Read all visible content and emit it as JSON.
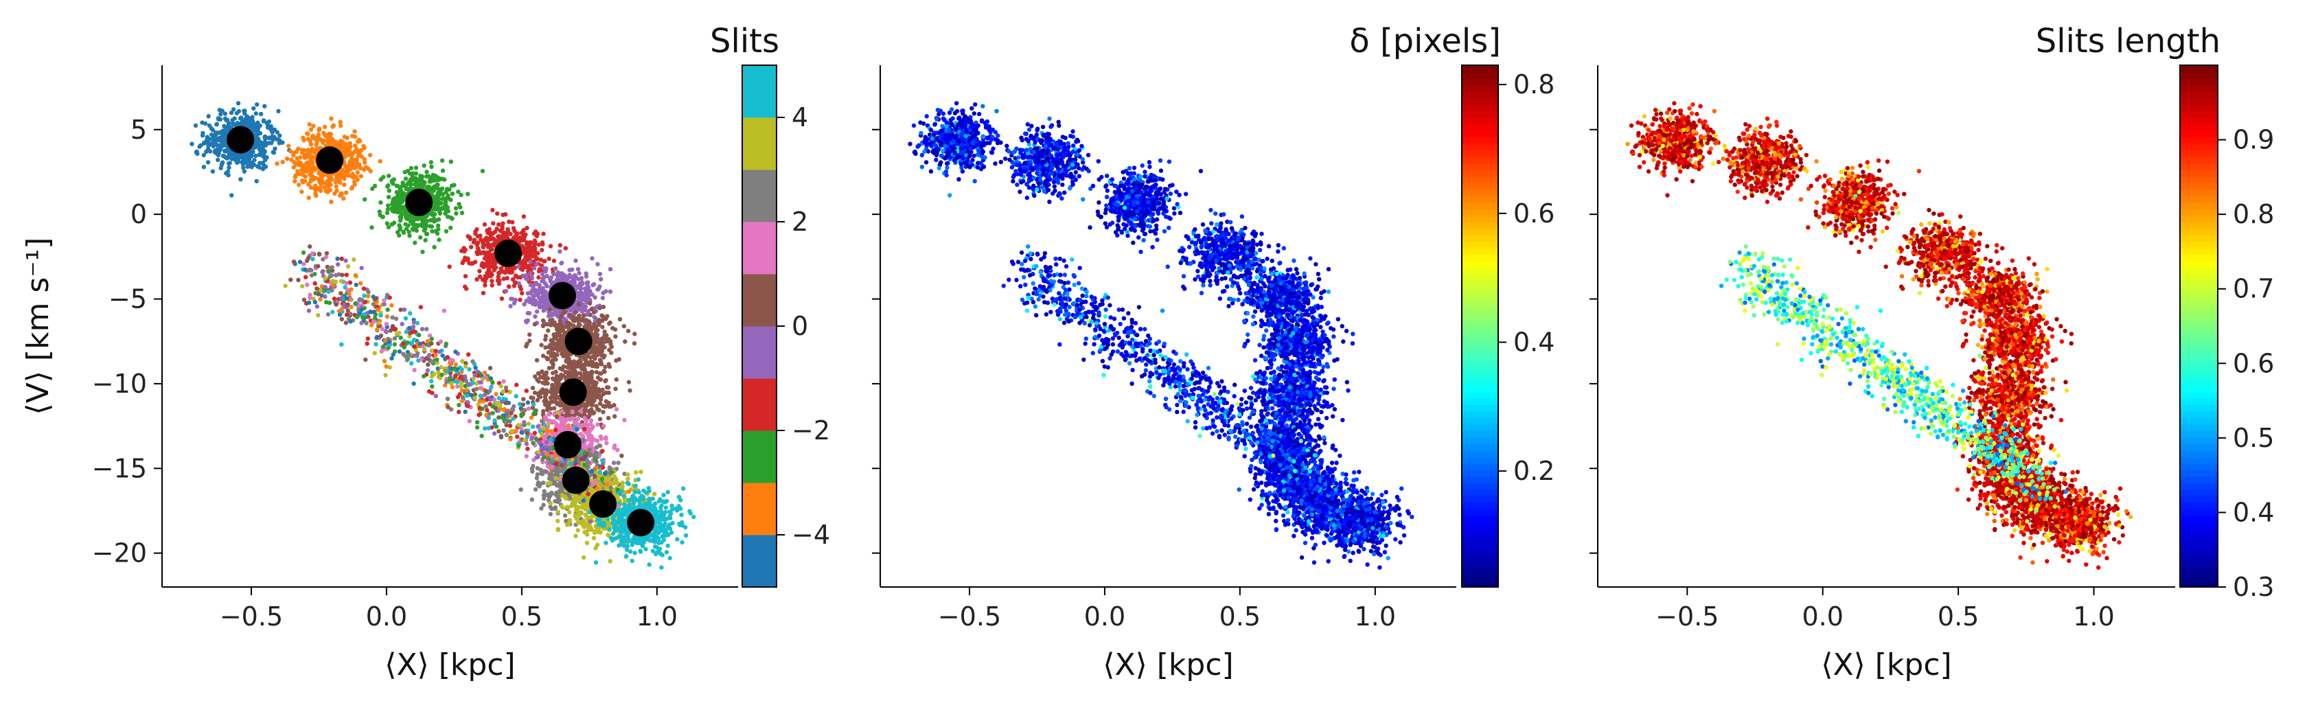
{
  "chart_data": [
    {
      "type": "scatter",
      "panel": "left",
      "xlabel": "⟨X⟩ [kpc]",
      "ylabel": "⟨V⟩ [km s⁻¹]",
      "xlim": [
        -0.83,
        1.3
      ],
      "ylim": [
        -22,
        8.8
      ],
      "xticks": [
        -0.5,
        0.0,
        0.5,
        1.0
      ],
      "xtick_labels": [
        "−0.5",
        "0.0",
        "0.5",
        "1.0"
      ],
      "yticks": [
        5,
        0,
        -5,
        -10,
        -15,
        -20
      ],
      "ytick_labels": [
        "5",
        "0",
        "−5",
        "−10",
        "−15",
        "−20"
      ],
      "colorbar": {
        "title": "Slits",
        "range": [
          -5,
          5
        ],
        "ticks": [
          4,
          2,
          0,
          -2,
          -4
        ],
        "tick_labels": [
          "4",
          "2",
          "0",
          "−2",
          "−4"
        ],
        "colors": [
          "#1f77b4",
          "#ff7f0e",
          "#2ca02c",
          "#d62728",
          "#9467bd",
          "#8c564b",
          "#e377c2",
          "#7f7f7f",
          "#bcbd22",
          "#17becf"
        ]
      },
      "slit_centers": [
        {
          "slit": -5,
          "x": -0.54,
          "y": 4.4
        },
        {
          "slit": -4,
          "x": -0.21,
          "y": 3.2
        },
        {
          "slit": -3,
          "x": 0.12,
          "y": 0.7
        },
        {
          "slit": -2,
          "x": 0.45,
          "y": -2.3
        },
        {
          "slit": -1,
          "x": 0.65,
          "y": -4.8
        },
        {
          "slit": 0,
          "x": 0.71,
          "y": -7.5
        },
        {
          "slit": 1,
          "x": 0.69,
          "y": -10.5
        },
        {
          "slit": 2,
          "x": 0.67,
          "y": -13.6
        },
        {
          "slit": 3,
          "x": 0.7,
          "y": -15.7
        },
        {
          "slit": 4,
          "x": 0.8,
          "y": -17.1
        },
        {
          "slit": 5,
          "x": 0.94,
          "y": -18.2
        }
      ]
    },
    {
      "type": "scatter",
      "panel": "middle",
      "xlabel": "⟨X⟩ [kpc]",
      "xlim": [
        -0.83,
        1.3
      ],
      "ylim": [
        -22,
        8.8
      ],
      "xticks": [
        -0.5,
        0.0,
        0.5,
        1.0
      ],
      "xtick_labels": [
        "−0.5",
        "0.0",
        "0.5",
        "1.0"
      ],
      "colorbar": {
        "title": "δ [pixels]",
        "range": [
          0.02,
          0.83
        ],
        "ticks": [
          0.8,
          0.6,
          0.4,
          0.2
        ],
        "tick_labels": [
          "0.8",
          "0.6",
          "0.4",
          "0.2"
        ],
        "colormap": "jet"
      }
    },
    {
      "type": "scatter",
      "panel": "right",
      "xlabel": "⟨X⟩ [kpc]",
      "xlim": [
        -0.83,
        1.3
      ],
      "ylim": [
        -22,
        8.8
      ],
      "xticks": [
        -0.5,
        0.0,
        0.5,
        1.0
      ],
      "xtick_labels": [
        "−0.5",
        "0.0",
        "0.5",
        "1.0"
      ],
      "colorbar": {
        "title": "Slits length",
        "range": [
          0.3,
          1.0
        ],
        "ticks": [
          0.9,
          0.8,
          0.7,
          0.6,
          0.5,
          0.4,
          0.3
        ],
        "tick_labels": [
          "0.9",
          "0.8",
          "0.7",
          "0.6",
          "0.5",
          "0.4",
          "0.3"
        ],
        "colormap": "jet"
      }
    }
  ]
}
